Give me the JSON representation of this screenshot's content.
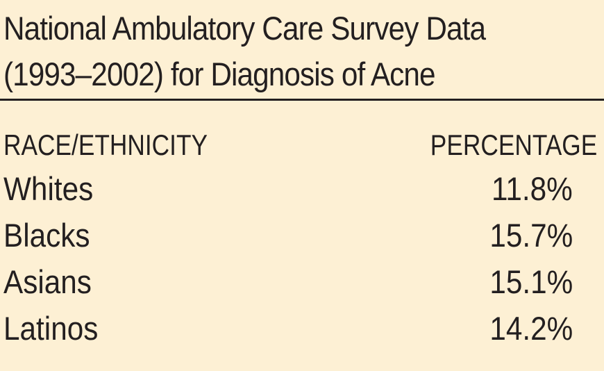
{
  "chart_data": {
    "type": "table",
    "title_line1": "National Ambulatory Care Survey Data",
    "title_line2": "(1993–2002) for Diagnosis of Acne",
    "columns": [
      "Race/Ethnicity",
      "Percentage"
    ],
    "rows": [
      {
        "race": "Whites",
        "percentage_label": "11.8%",
        "percentage": 11.8
      },
      {
        "race": "Blacks",
        "percentage_label": "15.7%",
        "percentage": 15.7
      },
      {
        "race": "Asians",
        "percentage_label": "15.1%",
        "percentage": 15.1
      },
      {
        "race": "Latinos",
        "percentage_label": "14.2%",
        "percentage": 14.2
      }
    ]
  },
  "colors": {
    "background": "#fdf0d4",
    "text": "#231f20",
    "rule": "#231f20"
  }
}
